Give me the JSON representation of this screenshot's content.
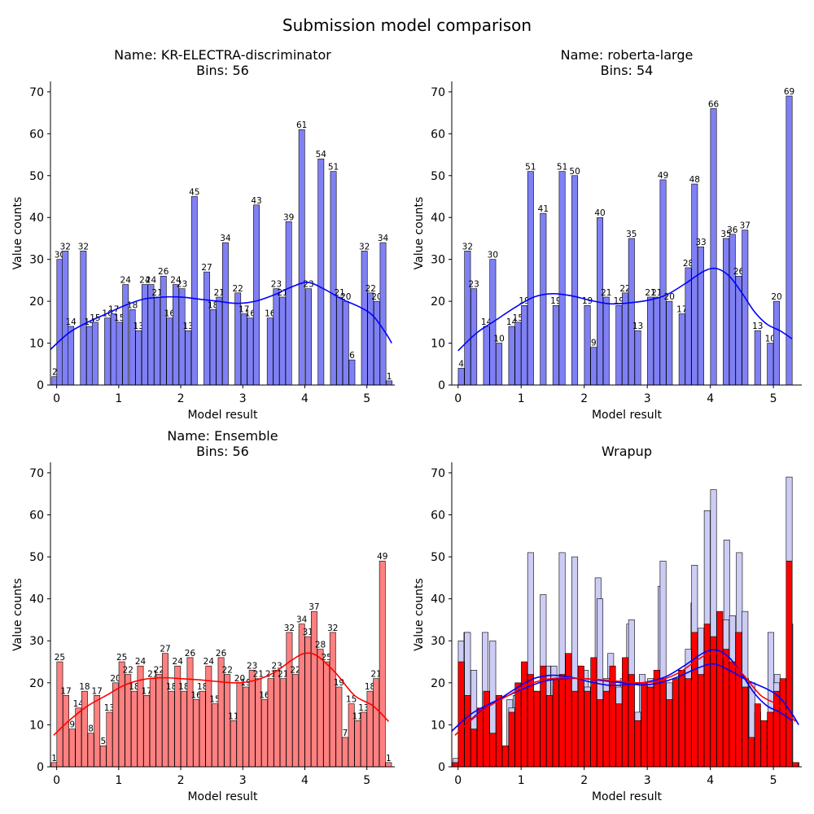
{
  "suptitle": "Submission model comparison",
  "colors": {
    "blue_fill": "#8080f5",
    "blue_line": "#0000ff",
    "red_fill": "#ff8080",
    "red_line": "#ff0000",
    "wrap_blue_fill": "#ccccf5",
    "wrap_red_fill": "#ff0000",
    "edge": "#000000"
  },
  "chart_data": [
    {
      "type": "bar",
      "title": "Name: KR-ELECTRA-discriminator",
      "subtitle": "Bins: 56",
      "xlabel": "Model result",
      "ylabel": "Value counts",
      "xlim": [
        -0.1,
        5.45
      ],
      "ylim": [
        0,
        72.5
      ],
      "xticks": [
        0,
        1,
        2,
        3,
        4,
        5
      ],
      "yticks": [
        0,
        10,
        20,
        30,
        40,
        50,
        60,
        70
      ],
      "color": "blue",
      "bins": [
        {
          "x": -0.03,
          "v": 2
        },
        {
          "x": 0.05,
          "v": 30
        },
        {
          "x": 0.14,
          "v": 32
        },
        {
          "x": 0.23,
          "v": 14
        },
        {
          "x": 0.43,
          "v": 32
        },
        {
          "x": 0.53,
          "v": 14
        },
        {
          "x": 0.62,
          "v": 15
        },
        {
          "x": 0.82,
          "v": 16
        },
        {
          "x": 0.92,
          "v": 17
        },
        {
          "x": 1.01,
          "v": 15
        },
        {
          "x": 1.11,
          "v": 24
        },
        {
          "x": 1.22,
          "v": 18
        },
        {
          "x": 1.32,
          "v": 13
        },
        {
          "x": 1.42,
          "v": 24
        },
        {
          "x": 1.52,
          "v": 24
        },
        {
          "x": 1.62,
          "v": 21
        },
        {
          "x": 1.72,
          "v": 26
        },
        {
          "x": 1.82,
          "v": 16
        },
        {
          "x": 1.92,
          "v": 24
        },
        {
          "x": 2.02,
          "v": 23
        },
        {
          "x": 2.12,
          "v": 13
        },
        {
          "x": 2.22,
          "v": 45
        },
        {
          "x": 2.42,
          "v": 27
        },
        {
          "x": 2.52,
          "v": 18
        },
        {
          "x": 2.62,
          "v": 21
        },
        {
          "x": 2.72,
          "v": 34
        },
        {
          "x": 2.92,
          "v": 22
        },
        {
          "x": 3.02,
          "v": 17
        },
        {
          "x": 3.12,
          "v": 16
        },
        {
          "x": 3.22,
          "v": 43
        },
        {
          "x": 3.44,
          "v": 16
        },
        {
          "x": 3.54,
          "v": 23
        },
        {
          "x": 3.64,
          "v": 21
        },
        {
          "x": 3.74,
          "v": 39
        },
        {
          "x": 3.95,
          "v": 61
        },
        {
          "x": 4.06,
          "v": 23
        },
        {
          "x": 4.26,
          "v": 54
        },
        {
          "x": 4.46,
          "v": 51
        },
        {
          "x": 4.56,
          "v": 21
        },
        {
          "x": 4.66,
          "v": 20
        },
        {
          "x": 4.76,
          "v": 6
        },
        {
          "x": 4.96,
          "v": 32
        },
        {
          "x": 5.06,
          "v": 22
        },
        {
          "x": 5.16,
          "v": 20
        },
        {
          "x": 5.26,
          "v": 34
        },
        {
          "x": 5.36,
          "v": 1
        }
      ],
      "kde": [
        [
          -0.1,
          8.5
        ],
        [
          0.2,
          12.5
        ],
        [
          0.5,
          15
        ],
        [
          0.8,
          17
        ],
        [
          1.1,
          19
        ],
        [
          1.4,
          20.5
        ],
        [
          1.7,
          21
        ],
        [
          2.0,
          21
        ],
        [
          2.3,
          20.5
        ],
        [
          2.6,
          20
        ],
        [
          2.9,
          19.5
        ],
        [
          3.2,
          20
        ],
        [
          3.5,
          21.5
        ],
        [
          3.8,
          23.5
        ],
        [
          4.05,
          24.5
        ],
        [
          4.3,
          23
        ],
        [
          4.6,
          20.5
        ],
        [
          4.9,
          18.5
        ],
        [
          5.1,
          16.5
        ],
        [
          5.3,
          12.5
        ],
        [
          5.4,
          10
        ]
      ]
    },
    {
      "type": "bar",
      "title": "Name: roberta-large",
      "subtitle": "Bins: 54",
      "xlabel": "Model result",
      "ylabel": "Value counts",
      "xlim": [
        -0.1,
        5.45
      ],
      "ylim": [
        0,
        72.5
      ],
      "xticks": [
        0,
        1,
        2,
        3,
        4,
        5
      ],
      "yticks": [
        0,
        10,
        20,
        30,
        40,
        50,
        60,
        70
      ],
      "color": "blue",
      "bins": [
        {
          "x": 0.05,
          "v": 4
        },
        {
          "x": 0.15,
          "v": 32
        },
        {
          "x": 0.25,
          "v": 23
        },
        {
          "x": 0.45,
          "v": 14
        },
        {
          "x": 0.55,
          "v": 30
        },
        {
          "x": 0.65,
          "v": 10
        },
        {
          "x": 0.85,
          "v": 14
        },
        {
          "x": 0.95,
          "v": 15
        },
        {
          "x": 1.05,
          "v": 19
        },
        {
          "x": 1.15,
          "v": 51
        },
        {
          "x": 1.35,
          "v": 41
        },
        {
          "x": 1.55,
          "v": 19
        },
        {
          "x": 1.65,
          "v": 51
        },
        {
          "x": 1.85,
          "v": 50
        },
        {
          "x": 2.05,
          "v": 19
        },
        {
          "x": 2.15,
          "v": 9
        },
        {
          "x": 2.25,
          "v": 40
        },
        {
          "x": 2.35,
          "v": 21
        },
        {
          "x": 2.55,
          "v": 19
        },
        {
          "x": 2.65,
          "v": 22
        },
        {
          "x": 2.75,
          "v": 35
        },
        {
          "x": 2.85,
          "v": 13
        },
        {
          "x": 3.05,
          "v": 21
        },
        {
          "x": 3.15,
          "v": 21
        },
        {
          "x": 3.25,
          "v": 49
        },
        {
          "x": 3.35,
          "v": 20
        },
        {
          "x": 3.55,
          "v": 17
        },
        {
          "x": 3.65,
          "v": 28
        },
        {
          "x": 3.75,
          "v": 48
        },
        {
          "x": 3.85,
          "v": 33
        },
        {
          "x": 4.05,
          "v": 66
        },
        {
          "x": 4.25,
          "v": 35
        },
        {
          "x": 4.35,
          "v": 36
        },
        {
          "x": 4.45,
          "v": 26
        },
        {
          "x": 4.55,
          "v": 37
        },
        {
          "x": 4.75,
          "v": 13
        },
        {
          "x": 4.95,
          "v": 10
        },
        {
          "x": 5.05,
          "v": 20
        },
        {
          "x": 5.25,
          "v": 69
        }
      ],
      "kde": [
        [
          0.0,
          8.2
        ],
        [
          0.3,
          12.5
        ],
        [
          0.6,
          15.5
        ],
        [
          0.9,
          18.5
        ],
        [
          1.2,
          21
        ],
        [
          1.5,
          21.8
        ],
        [
          1.8,
          21.3
        ],
        [
          2.1,
          20.2
        ],
        [
          2.4,
          19.4
        ],
        [
          2.7,
          19.6
        ],
        [
          3.0,
          20.2
        ],
        [
          3.3,
          21.5
        ],
        [
          3.6,
          24.2
        ],
        [
          3.9,
          27.2
        ],
        [
          4.1,
          27.8
        ],
        [
          4.3,
          26
        ],
        [
          4.5,
          22
        ],
        [
          4.7,
          17.5
        ],
        [
          4.9,
          14.5
        ],
        [
          5.1,
          13
        ],
        [
          5.3,
          11
        ]
      ]
    },
    {
      "type": "bar",
      "title": "Name: Ensemble",
      "subtitle": "Bins: 56",
      "xlabel": "Model result",
      "ylabel": "Value counts",
      "xlim": [
        -0.1,
        5.45
      ],
      "ylim": [
        0,
        72.5
      ],
      "xticks": [
        0,
        1,
        2,
        3,
        4,
        5
      ],
      "yticks": [
        0,
        10,
        20,
        30,
        40,
        50,
        60,
        70
      ],
      "color": "red",
      "bins": [
        {
          "x": -0.04,
          "v": 1
        },
        {
          "x": 0.05,
          "v": 25
        },
        {
          "x": 0.15,
          "v": 17
        },
        {
          "x": 0.25,
          "v": 9
        },
        {
          "x": 0.35,
          "v": 14
        },
        {
          "x": 0.45,
          "v": 18
        },
        {
          "x": 0.55,
          "v": 8
        },
        {
          "x": 0.65,
          "v": 17
        },
        {
          "x": 0.75,
          "v": 5
        },
        {
          "x": 0.85,
          "v": 13
        },
        {
          "x": 0.95,
          "v": 20
        },
        {
          "x": 1.05,
          "v": 25
        },
        {
          "x": 1.15,
          "v": 22
        },
        {
          "x": 1.25,
          "v": 18
        },
        {
          "x": 1.35,
          "v": 24
        },
        {
          "x": 1.45,
          "v": 17
        },
        {
          "x": 1.55,
          "v": 21
        },
        {
          "x": 1.65,
          "v": 22
        },
        {
          "x": 1.75,
          "v": 27
        },
        {
          "x": 1.85,
          "v": 18
        },
        {
          "x": 1.95,
          "v": 24
        },
        {
          "x": 2.05,
          "v": 18
        },
        {
          "x": 2.15,
          "v": 26
        },
        {
          "x": 2.25,
          "v": 16
        },
        {
          "x": 2.35,
          "v": 18
        },
        {
          "x": 2.45,
          "v": 24
        },
        {
          "x": 2.55,
          "v": 15
        },
        {
          "x": 2.65,
          "v": 26
        },
        {
          "x": 2.75,
          "v": 22
        },
        {
          "x": 2.85,
          "v": 11
        },
        {
          "x": 2.95,
          "v": 20
        },
        {
          "x": 3.05,
          "v": 19
        },
        {
          "x": 3.15,
          "v": 23
        },
        {
          "x": 3.25,
          "v": 21
        },
        {
          "x": 3.35,
          "v": 16
        },
        {
          "x": 3.45,
          "v": 21
        },
        {
          "x": 3.55,
          "v": 23
        },
        {
          "x": 3.65,
          "v": 21
        },
        {
          "x": 3.75,
          "v": 32
        },
        {
          "x": 3.85,
          "v": 22
        },
        {
          "x": 3.95,
          "v": 34
        },
        {
          "x": 4.05,
          "v": 31
        },
        {
          "x": 4.15,
          "v": 37
        },
        {
          "x": 4.25,
          "v": 28
        },
        {
          "x": 4.35,
          "v": 25
        },
        {
          "x": 4.45,
          "v": 32
        },
        {
          "x": 4.55,
          "v": 19
        },
        {
          "x": 4.65,
          "v": 7
        },
        {
          "x": 4.75,
          "v": 15
        },
        {
          "x": 4.85,
          "v": 11
        },
        {
          "x": 4.95,
          "v": 13
        },
        {
          "x": 5.05,
          "v": 18
        },
        {
          "x": 5.15,
          "v": 21
        },
        {
          "x": 5.25,
          "v": 49
        },
        {
          "x": 5.35,
          "v": 1
        }
      ],
      "kde": [
        [
          -0.05,
          7.5
        ],
        [
          0.2,
          11
        ],
        [
          0.5,
          14.5
        ],
        [
          0.8,
          17
        ],
        [
          1.1,
          19.5
        ],
        [
          1.4,
          20.8
        ],
        [
          1.7,
          21.2
        ],
        [
          2.0,
          21
        ],
        [
          2.3,
          20.7
        ],
        [
          2.6,
          20.3
        ],
        [
          2.9,
          20
        ],
        [
          3.2,
          20.6
        ],
        [
          3.5,
          22.4
        ],
        [
          3.8,
          25.5
        ],
        [
          4.0,
          27
        ],
        [
          4.2,
          26.4
        ],
        [
          4.5,
          22.3
        ],
        [
          4.8,
          17
        ],
        [
          5.1,
          14.5
        ],
        [
          5.35,
          10.8
        ]
      ]
    },
    {
      "type": "bar",
      "title": "Wrapup",
      "xlabel": "Model result",
      "ylabel": "Value counts",
      "xlim": [
        -0.1,
        5.45
      ],
      "ylim": [
        0,
        72.5
      ],
      "xticks": [
        0,
        1,
        2,
        3,
        4,
        5
      ],
      "yticks": [
        0,
        10,
        20,
        30,
        40,
        50,
        60,
        70
      ],
      "overlay_of": [
        0,
        1,
        2
      ]
    }
  ]
}
